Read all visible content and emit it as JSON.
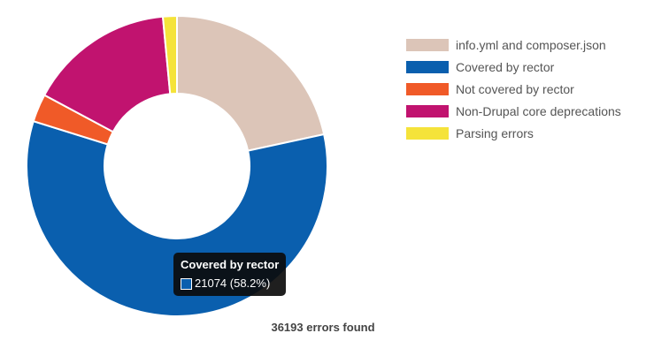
{
  "chart_data": {
    "type": "pie",
    "variant": "doughnut",
    "categories": [
      "info.yml and composer.json",
      "Covered by rector",
      "Not covered by rector",
      "Non-Drupal core deprecations",
      "Parsing errors"
    ],
    "values": [
      7820,
      21074,
      1086,
      5670,
      543
    ],
    "colors": [
      "#dcc5b8",
      "#0a5fae",
      "#f05a28",
      "#c1136f",
      "#f5e33a"
    ],
    "legend_position": "top-right",
    "summary": "36193 errors found"
  },
  "tooltip": {
    "title": "Covered by rector",
    "value": "21074 (58.2%)",
    "color": "#0a5fae"
  }
}
